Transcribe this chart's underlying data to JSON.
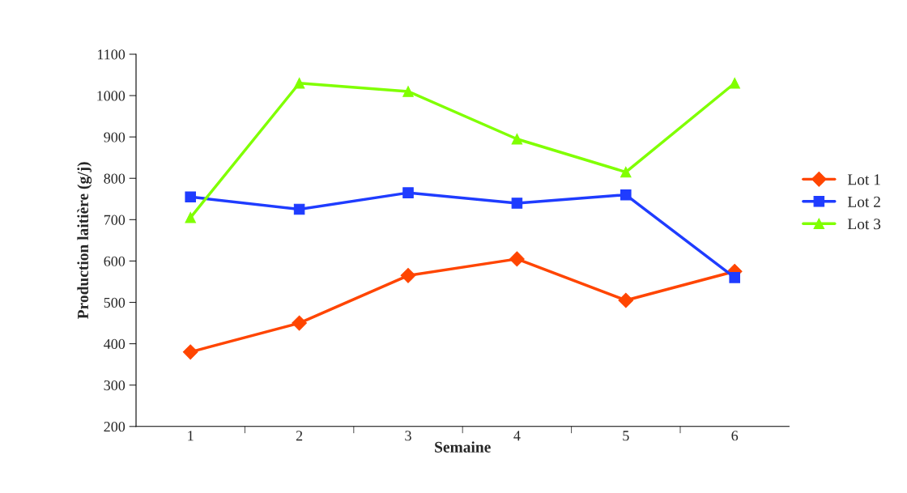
{
  "chart_data": {
    "type": "line",
    "xlabel": "Semaine",
    "ylabel": "Production laitière (g/j)",
    "categories": [
      "1",
      "2",
      "3",
      "4",
      "5",
      "6"
    ],
    "series": [
      {
        "name": "Lot 1",
        "color": "#ff4500",
        "marker": "diamond",
        "values": [
          380,
          450,
          565,
          605,
          505,
          575
        ]
      },
      {
        "name": "Lot 2",
        "color": "#1f3cff",
        "marker": "square",
        "values": [
          755,
          725,
          765,
          740,
          760,
          560
        ]
      },
      {
        "name": "Lot 3",
        "color": "#80ff00",
        "marker": "triangle",
        "values": [
          705,
          1030,
          1010,
          895,
          815,
          1030
        ]
      }
    ],
    "ylim": [
      200,
      1100
    ],
    "yticks": [
      200,
      300,
      400,
      500,
      600,
      700,
      800,
      900,
      1000,
      1100
    ],
    "grid": false,
    "legend": "right"
  }
}
